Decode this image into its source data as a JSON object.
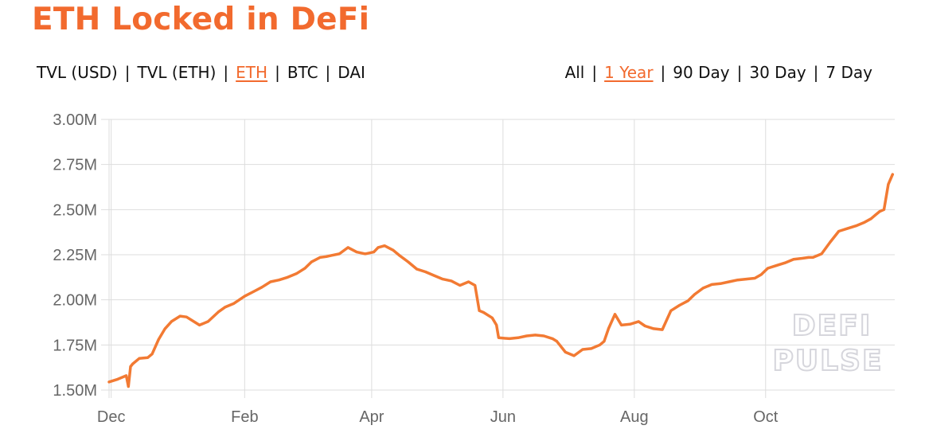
{
  "title": "ETH Locked in DeFi",
  "metric_options": [
    "TVL (USD)",
    "TVL (ETH)",
    "ETH",
    "BTC",
    "DAI"
  ],
  "metric_active": "ETH",
  "range_options": [
    "All",
    "1 Year",
    "90 Day",
    "30 Day",
    "7 Day"
  ],
  "range_active": "1 Year",
  "separator": "|",
  "watermark": [
    "DEFI",
    "PULSE"
  ],
  "colors": {
    "accent": "#f26a2e",
    "line": "#f27a33",
    "grid": "#dddddd",
    "text": "#111111",
    "tick": "#666666"
  },
  "chart_data": {
    "type": "line",
    "title": "ETH Locked in DeFi",
    "xlabel": "",
    "ylabel": "",
    "ylim": [
      1500000,
      3000000
    ],
    "y_ticks": [
      {
        "value": 1500000,
        "label": "1.50M"
      },
      {
        "value": 1750000,
        "label": "1.75M"
      },
      {
        "value": 2000000,
        "label": "2.00M"
      },
      {
        "value": 2250000,
        "label": "2.25M"
      },
      {
        "value": 2500000,
        "label": "2.50M"
      },
      {
        "value": 2750000,
        "label": "2.75M"
      },
      {
        "value": 3000000,
        "label": "3.00M"
      }
    ],
    "x_ticks": [
      {
        "date": "2018-12-01",
        "label": "Dec"
      },
      {
        "date": "2019-02-01",
        "label": "Feb"
      },
      {
        "date": "2019-04-01",
        "label": "Apr"
      },
      {
        "date": "2019-06-01",
        "label": "Jun"
      },
      {
        "date": "2019-08-01",
        "label": "Aug"
      },
      {
        "date": "2019-10-01",
        "label": "Oct"
      }
    ],
    "xlim": [
      "2018-11-30",
      "2019-11-30"
    ],
    "grid": true,
    "legend": "none",
    "series": [
      {
        "x": [
          "2018-11-30",
          "2018-12-04",
          "2018-12-08",
          "2018-12-09",
          "2018-12-10",
          "2018-12-11",
          "2018-12-14",
          "2018-12-18",
          "2018-12-20",
          "2018-12-23",
          "2018-12-26",
          "2018-12-29",
          "2019-01-02",
          "2019-01-05",
          "2019-01-09",
          "2019-01-11",
          "2019-01-15",
          "2019-01-20",
          "2019-01-23",
          "2019-01-27",
          "2019-02-01",
          "2019-02-05",
          "2019-02-09",
          "2019-02-13",
          "2019-02-17",
          "2019-02-21",
          "2019-02-25",
          "2019-03-01",
          "2019-03-04",
          "2019-03-08",
          "2019-03-11",
          "2019-03-13",
          "2019-03-17",
          "2019-03-21",
          "2019-03-25",
          "2019-03-29",
          "2019-04-02",
          "2019-04-04",
          "2019-04-07",
          "2019-04-11",
          "2019-04-14",
          "2019-04-18",
          "2019-04-22",
          "2019-04-26",
          "2019-04-30",
          "2019-05-04",
          "2019-05-08",
          "2019-05-12",
          "2019-05-16",
          "2019-05-19",
          "2019-05-21",
          "2019-05-23",
          "2019-05-27",
          "2019-05-29",
          "2019-05-30",
          "2019-06-04",
          "2019-06-08",
          "2019-06-12",
          "2019-06-16",
          "2019-06-20",
          "2019-06-24",
          "2019-06-26",
          "2019-06-30",
          "2019-07-04",
          "2019-07-08",
          "2019-07-12",
          "2019-07-16",
          "2019-07-18",
          "2019-07-20",
          "2019-07-23",
          "2019-07-26",
          "2019-07-30",
          "2019-08-03",
          "2019-08-06",
          "2019-08-10",
          "2019-08-14",
          "2019-08-18",
          "2019-08-22",
          "2019-08-26",
          "2019-08-29",
          "2019-09-02",
          "2019-09-06",
          "2019-09-10",
          "2019-09-14",
          "2019-09-18",
          "2019-09-22",
          "2019-09-26",
          "2019-09-29",
          "2019-10-02",
          "2019-10-06",
          "2019-10-10",
          "2019-10-14",
          "2019-10-18",
          "2019-10-21",
          "2019-10-23",
          "2019-10-27",
          "2019-10-31",
          "2019-11-04",
          "2019-11-08",
          "2019-11-12",
          "2019-11-16",
          "2019-11-19",
          "2019-11-21",
          "2019-11-23",
          "2019-11-25",
          "2019-11-27",
          "2019-11-29"
        ],
        "values": [
          1545000,
          1560000,
          1580000,
          1520000,
          1630000,
          1645000,
          1675000,
          1680000,
          1700000,
          1780000,
          1840000,
          1880000,
          1910000,
          1905000,
          1875000,
          1860000,
          1880000,
          1935000,
          1960000,
          1980000,
          2020000,
          2045000,
          2070000,
          2100000,
          2110000,
          2125000,
          2145000,
          2175000,
          2210000,
          2235000,
          2240000,
          2245000,
          2255000,
          2290000,
          2265000,
          2255000,
          2265000,
          2290000,
          2300000,
          2275000,
          2245000,
          2210000,
          2170000,
          2155000,
          2135000,
          2115000,
          2105000,
          2080000,
          2100000,
          2080000,
          1940000,
          1930000,
          1900000,
          1860000,
          1790000,
          1785000,
          1790000,
          1800000,
          1805000,
          1800000,
          1785000,
          1770000,
          1710000,
          1690000,
          1725000,
          1730000,
          1750000,
          1770000,
          1840000,
          1920000,
          1860000,
          1865000,
          1880000,
          1855000,
          1840000,
          1835000,
          1940000,
          1970000,
          1995000,
          2030000,
          2065000,
          2085000,
          2090000,
          2100000,
          2110000,
          2115000,
          2120000,
          2140000,
          2175000,
          2190000,
          2205000,
          2225000,
          2230000,
          2235000,
          2235000,
          2255000,
          2320000,
          2380000,
          2395000,
          2410000,
          2430000,
          2450000,
          2470000,
          2490000,
          2500000,
          2640000,
          2695000
        ]
      }
    ]
  }
}
